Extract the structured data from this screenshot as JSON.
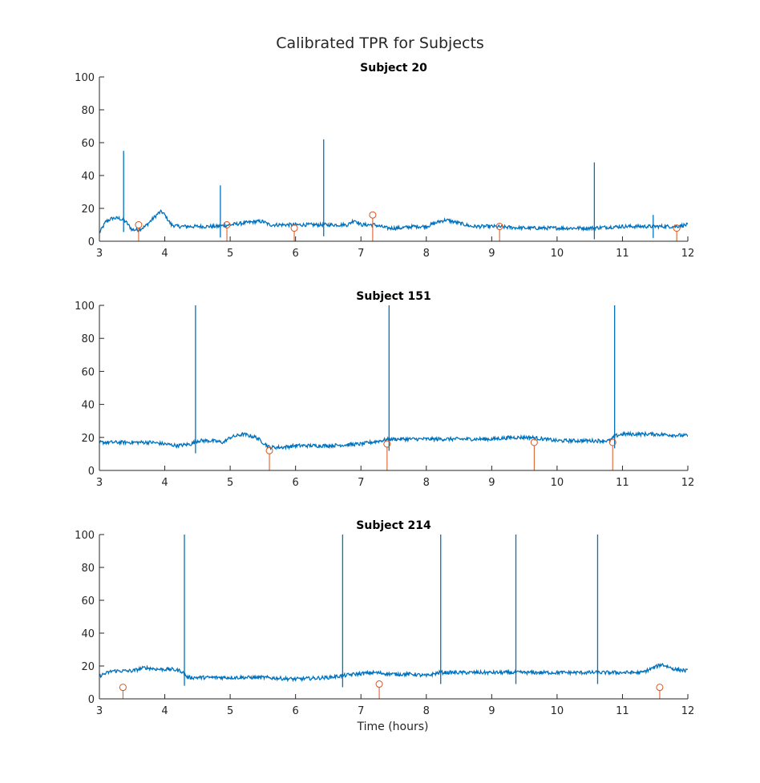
{
  "figure": {
    "title": "Calibrated TPR for Subjects",
    "xlabel": "Time (hours)"
  },
  "colors": {
    "signal": "#0072bd",
    "stem": "#d95319",
    "axis": "#262626"
  },
  "chart_data": [
    {
      "type": "line",
      "title": "Subject 20",
      "xlabel": "",
      "ylabel": "",
      "xlim": [
        3,
        12
      ],
      "ylim": [
        0,
        100
      ],
      "xticks": [
        3,
        4,
        5,
        6,
        7,
        8,
        9,
        10,
        11,
        12
      ],
      "yticks": [
        0,
        20,
        40,
        60,
        80,
        100
      ],
      "grid": false,
      "series": [
        {
          "type": "line",
          "x": [
            3.0,
            3.1,
            3.2,
            3.3,
            3.4,
            3.5,
            3.6,
            3.7,
            3.8,
            3.9,
            3.95,
            4.0,
            4.1,
            4.2,
            4.4,
            4.6,
            4.8,
            5.0,
            5.2,
            5.4,
            5.5,
            5.6,
            5.8,
            6.0,
            6.2,
            6.4,
            6.6,
            6.8,
            6.9,
            7.0,
            7.2,
            7.4,
            7.6,
            7.8,
            8.0,
            8.2,
            8.3,
            8.5,
            8.7,
            9.0,
            9.5,
            10.0,
            10.5,
            11.0,
            11.5,
            11.8,
            12.0
          ],
          "y": [
            5,
            12,
            14,
            14,
            12,
            7,
            7,
            9,
            13,
            17,
            18,
            16,
            10,
            9,
            9,
            9,
            9,
            10,
            11,
            12,
            12,
            10,
            10,
            10,
            10,
            10,
            10,
            10,
            13,
            10,
            10,
            8,
            8,
            9,
            9,
            12,
            13,
            11,
            9,
            9,
            8,
            8,
            8,
            9,
            9,
            9,
            10
          ]
        }
      ],
      "spikes": [
        {
          "x": 3.37,
          "y": 55
        },
        {
          "x": 4.85,
          "y": 34
        },
        {
          "x": 6.43,
          "y": 62
        },
        {
          "x": 10.57,
          "y": 48
        },
        {
          "x": 11.47,
          "y": 16
        }
      ],
      "stems": [
        {
          "x": 3.6,
          "y": 10
        },
        {
          "x": 4.95,
          "y": 10
        },
        {
          "x": 5.98,
          "y": 8
        },
        {
          "x": 7.18,
          "y": 16
        },
        {
          "x": 9.12,
          "y": 9
        },
        {
          "x": 11.83,
          "y": 8
        }
      ]
    },
    {
      "type": "line",
      "title": "Subject 151",
      "xlabel": "",
      "ylabel": "",
      "xlim": [
        3,
        12
      ],
      "ylim": [
        0,
        100
      ],
      "xticks": [
        3,
        4,
        5,
        6,
        7,
        8,
        9,
        10,
        11,
        12
      ],
      "yticks": [
        0,
        20,
        40,
        60,
        80,
        100
      ],
      "grid": false,
      "series": [
        {
          "type": "line",
          "x": [
            3.0,
            3.5,
            3.8,
            4.0,
            4.2,
            4.4,
            4.5,
            4.7,
            4.9,
            5.0,
            5.2,
            5.4,
            5.5,
            5.6,
            5.8,
            6.0,
            6.5,
            7.0,
            7.3,
            7.45,
            7.6,
            8.0,
            8.5,
            9.0,
            9.3,
            9.6,
            10.0,
            10.5,
            10.8,
            10.9,
            11.0,
            11.5,
            12.0
          ],
          "y": [
            17,
            17,
            17,
            16,
            15,
            16,
            18,
            18,
            17,
            20,
            22,
            20,
            17,
            14,
            14,
            15,
            15,
            16,
            18,
            19,
            19,
            19,
            19,
            19,
            20,
            20,
            18,
            18,
            18,
            21,
            22,
            22,
            21
          ]
        }
      ],
      "spikes": [
        {
          "x": 4.47,
          "y": 100
        },
        {
          "x": 7.43,
          "y": 100
        },
        {
          "x": 10.88,
          "y": 100
        }
      ],
      "stems": [
        {
          "x": 5.6,
          "y": 12
        },
        {
          "x": 7.4,
          "y": 16
        },
        {
          "x": 9.65,
          "y": 17
        },
        {
          "x": 10.85,
          "y": 17
        }
      ]
    },
    {
      "type": "line",
      "title": "Subject 214",
      "xlabel": "Time (hours)",
      "ylabel": "",
      "xlim": [
        3,
        12
      ],
      "ylim": [
        0,
        100
      ],
      "xticks": [
        3,
        4,
        5,
        6,
        7,
        8,
        9,
        10,
        11,
        12
      ],
      "yticks": [
        0,
        20,
        40,
        60,
        80,
        100
      ],
      "grid": false,
      "series": [
        {
          "type": "line",
          "x": [
            3.0,
            3.2,
            3.5,
            3.7,
            3.9,
            4.1,
            4.25,
            4.35,
            4.5,
            5.0,
            5.5,
            6.0,
            6.5,
            6.7,
            6.9,
            7.2,
            7.5,
            7.8,
            8.0,
            8.2,
            8.5,
            9.0,
            9.4,
            10.0,
            10.5,
            10.8,
            11.0,
            11.3,
            11.6,
            11.8,
            12.0
          ],
          "y": [
            14,
            17,
            17,
            19,
            18,
            18,
            17,
            13,
            13,
            13,
            13,
            12,
            13,
            14,
            15,
            16,
            15,
            15,
            14,
            16,
            16,
            16,
            16,
            16,
            16,
            16,
            16,
            16,
            21,
            18,
            17
          ]
        }
      ],
      "spikes": [
        {
          "x": 4.3,
          "y": 100
        },
        {
          "x": 6.72,
          "y": 100
        },
        {
          "x": 8.22,
          "y": 100
        },
        {
          "x": 9.37,
          "y": 100
        },
        {
          "x": 10.62,
          "y": 100
        }
      ],
      "stems": [
        {
          "x": 3.36,
          "y": 7
        },
        {
          "x": 7.28,
          "y": 9
        },
        {
          "x": 11.57,
          "y": 7
        }
      ]
    }
  ]
}
